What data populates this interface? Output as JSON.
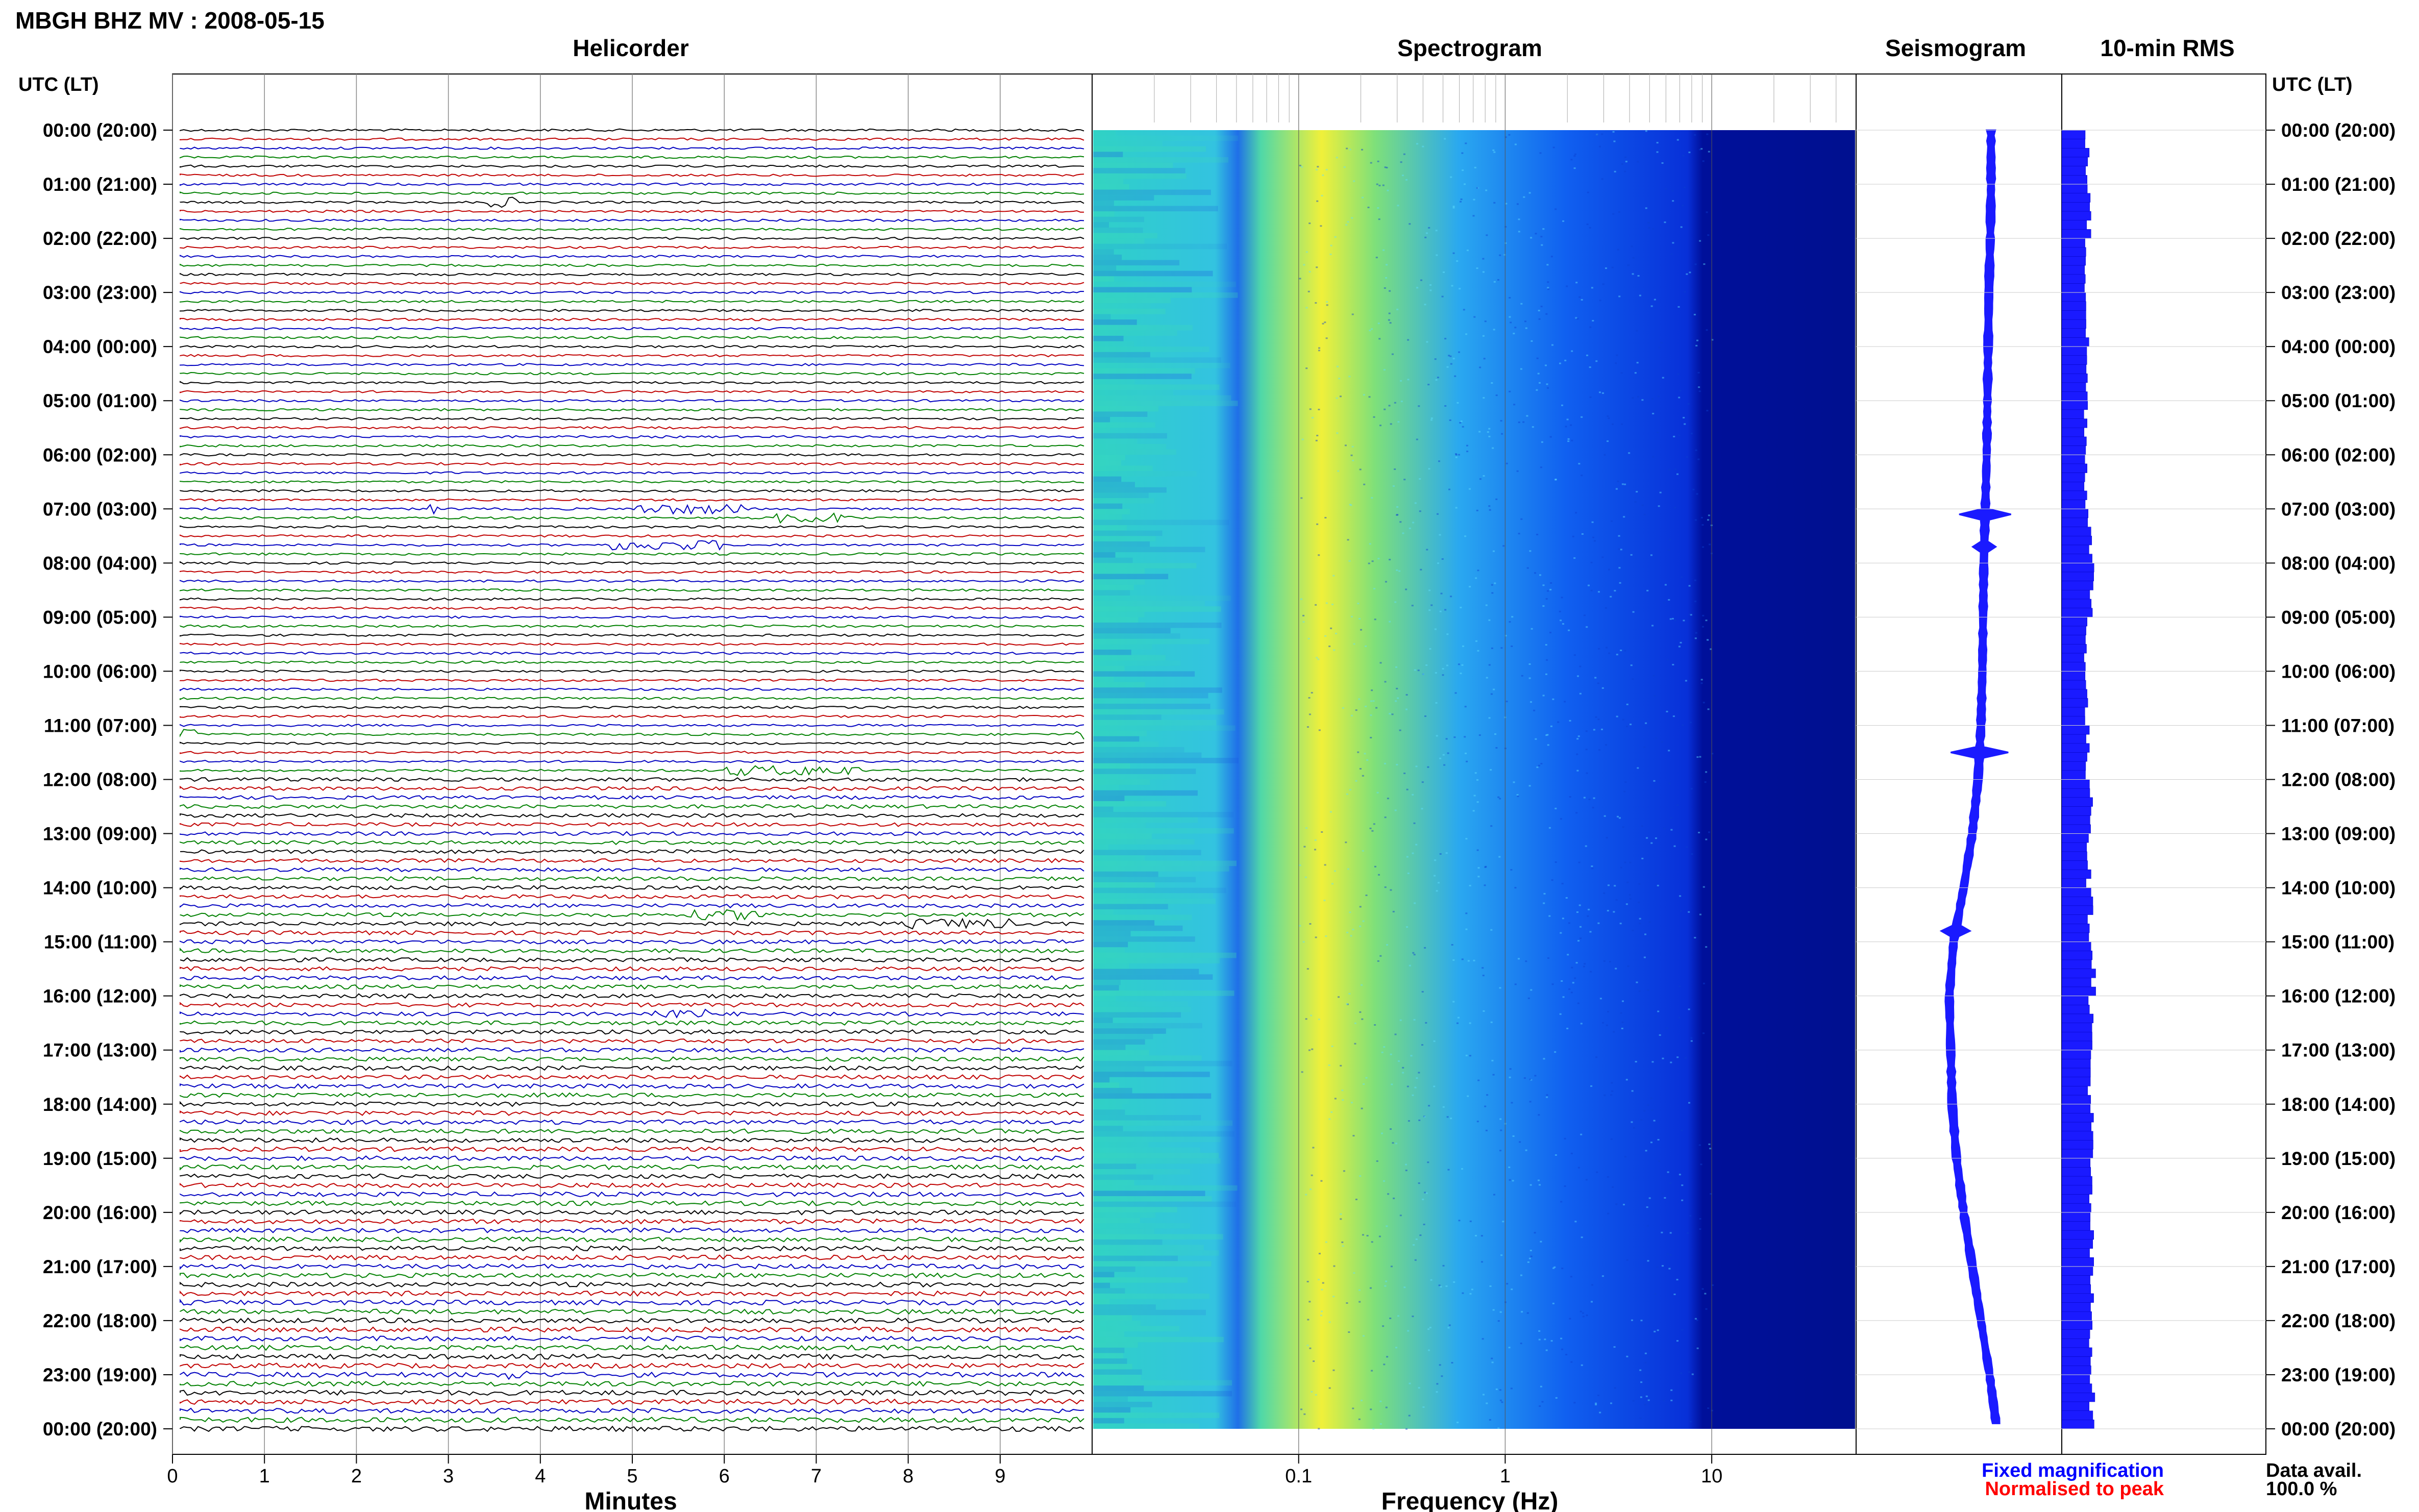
{
  "header": {
    "title": "MBGH BHZ MV : 2008-05-15"
  },
  "panels": {
    "helicorder": "Helicorder",
    "spectrogram": "Spectrogram",
    "seismogram": "Seismogram",
    "rms": "10-min RMS"
  },
  "axes": {
    "left_time_header": "UTC (LT)",
    "right_time_header": "UTC (LT)",
    "minutes_label": "Minutes",
    "frequency_label": "Frequency (Hz)"
  },
  "footer": {
    "fixed_magnification": "Fixed magnification",
    "normalised_to_peak": "Normalised to peak",
    "data_avail_label": "Data avail.",
    "data_avail_value": "100.0 %"
  },
  "colors": {
    "trace_colors": [
      "#000000",
      "#c00000",
      "#0000c0",
      "#008000"
    ],
    "seismogram": "#1a1aff",
    "rms_bars": "#1a1aff",
    "fixed_magnification": "#0000ff",
    "normalised_to_peak": "#ff0000"
  },
  "chart_data": [
    {
      "type": "line",
      "name": "helicorder",
      "title": "Helicorder",
      "xlabel": "Minutes",
      "ylabel": "UTC (LT)",
      "xlim": [
        0,
        10
      ],
      "x_ticks": [
        "0",
        "1",
        "2",
        "3",
        "4",
        "5",
        "6",
        "7",
        "8",
        "9"
      ],
      "y_tick_labels": [
        "00:00 (20:00)",
        "01:00 (21:00)",
        "02:00 (22:00)",
        "03:00 (23:00)",
        "04:00 (00:00)",
        "05:00 (01:00)",
        "06:00 (02:00)",
        "07:00 (03:00)",
        "08:00 (04:00)",
        "09:00 (05:00)",
        "10:00 (06:00)",
        "11:00 (07:00)",
        "12:00 (08:00)",
        "13:00 (09:00)",
        "14:00 (10:00)",
        "15:00 (11:00)",
        "16:00 (12:00)",
        "17:00 (13:00)",
        "18:00 (14:00)",
        "19:00 (15:00)",
        "20:00 (16:00)",
        "21:00 (17:00)",
        "22:00 (18:00)",
        "23:00 (19:00)",
        "00:00 (20:00)"
      ],
      "lines_per_hour": 6,
      "events": [
        {
          "hour": 1.3,
          "minute_start": 3.4,
          "minute_end": 3.8
        },
        {
          "hour": 7.0,
          "minute_start": 2.8,
          "minute_end": 2.9
        },
        {
          "hour": 7.0,
          "minute_start": 5.0,
          "minute_end": 6.2
        },
        {
          "hour": 7.1,
          "minute_start": 6.5,
          "minute_end": 7.4
        },
        {
          "hour": 7.6,
          "minute_start": 4.7,
          "minute_end": 6.0
        },
        {
          "hour": 11.2,
          "minute_start": 0.0,
          "minute_end": 0.3
        },
        {
          "hour": 11.2,
          "minute_start": 9.8,
          "minute_end": 9.95
        },
        {
          "hour": 11.8,
          "minute_start": 6.0,
          "minute_end": 7.5
        },
        {
          "hour": 14.5,
          "minute_start": 5.6,
          "minute_end": 6.6
        },
        {
          "hour": 14.7,
          "minute_start": 8.0,
          "minute_end": 9.1
        },
        {
          "hour": 16.3,
          "minute_start": 5.2,
          "minute_end": 5.8
        },
        {
          "hour": 23.0,
          "minute_start": 3.6,
          "minute_end": 3.9
        }
      ]
    },
    {
      "type": "heatmap",
      "name": "spectrogram",
      "title": "Spectrogram",
      "xlabel": "Frequency (Hz)",
      "x_scale": "log",
      "xlim": [
        0.01,
        50
      ],
      "x_ticks": [
        0.1,
        1,
        10
      ],
      "x_tick_labels": [
        "0.1",
        "1",
        "10"
      ],
      "ylim": [
        0,
        24
      ],
      "energy_peak_hz": 0.25
    },
    {
      "type": "line",
      "name": "seismogram",
      "title": "Seismogram",
      "ylim": [
        0,
        24
      ],
      "offset": [
        0.16,
        0.16,
        0.15,
        0.13,
        0.12,
        0.11,
        0.1,
        0.08,
        0.06,
        0.05,
        0.04,
        0.02,
        -0.02,
        -0.1,
        -0.22,
        -0.36,
        -0.42,
        -0.4,
        -0.38,
        -0.32,
        -0.22,
        -0.1,
        0.02,
        0.14,
        0.24
      ],
      "spikes": [
        {
          "hour": 7.1,
          "amp": 0.9
        },
        {
          "hour": 11.5,
          "amp": 1.0
        },
        {
          "hour": 7.7,
          "amp": 0.4
        },
        {
          "hour": 14.8,
          "amp": 0.5
        }
      ]
    },
    {
      "type": "bar",
      "name": "10-min RMS",
      "title": "10-min RMS",
      "orientation": "horizontal",
      "ylim": [
        0,
        24
      ],
      "hourly_rms_relative": [
        0.62,
        0.66,
        0.6,
        0.62,
        0.61,
        0.6,
        0.6,
        0.7,
        0.74,
        0.6,
        0.6,
        0.62,
        0.74,
        0.66,
        0.7,
        0.78,
        0.72,
        0.7,
        0.72,
        0.7,
        0.72,
        0.72,
        0.74,
        0.74
      ]
    }
  ]
}
